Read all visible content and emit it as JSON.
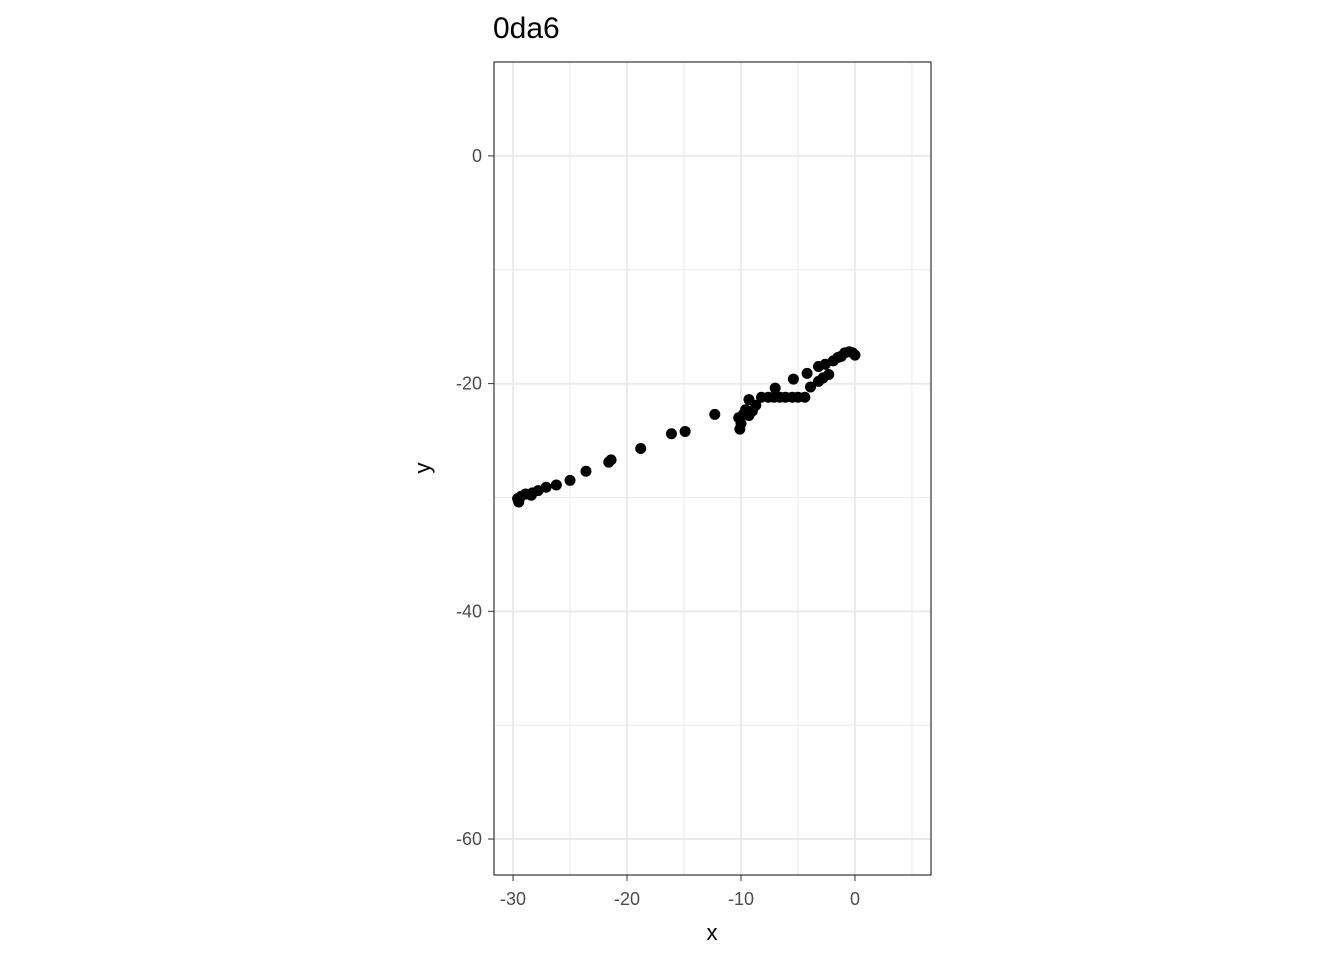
{
  "chart_data": {
    "type": "scatter",
    "title": "0da6",
    "x_label": "x",
    "y_label": "y",
    "color": "#000000",
    "grid": true,
    "x": [
      -29.5,
      -29.6,
      -29.3,
      -28.9,
      -28.4,
      -28.3,
      -27.8,
      -27.1,
      -26.2,
      -25.0,
      -23.6,
      -21.6,
      -21.4,
      -18.8,
      -16.1,
      -14.9,
      -12.3,
      -10.1,
      -10.0,
      -10.2,
      -9.8,
      -9.6,
      -9.3,
      -9.0,
      -9.3,
      -8.7,
      -8.2,
      -7.6,
      -7.1,
      -7.0,
      -6.6,
      -6.1,
      -5.5,
      -5.0,
      -4.4,
      -3.9,
      -4.2,
      -5.4,
      -3.2,
      -2.8,
      -2.3,
      -3.2,
      -2.6,
      -1.9,
      -1.5,
      -1.2,
      -0.9,
      -0.5,
      -0.2,
      0.0
    ],
    "y": [
      -30.4,
      -30.1,
      -29.9,
      -29.7,
      -29.8,
      -29.6,
      -29.4,
      -29.1,
      -28.9,
      -28.5,
      -27.7,
      -26.9,
      -26.7,
      -25.7,
      -24.4,
      -24.2,
      -22.7,
      -24.0,
      -23.5,
      -23.0,
      -22.7,
      -22.3,
      -22.8,
      -22.4,
      -21.4,
      -21.9,
      -21.2,
      -21.2,
      -21.2,
      -20.4,
      -21.2,
      -21.2,
      -21.2,
      -21.2,
      -21.2,
      -20.3,
      -19.1,
      -19.6,
      -19.8,
      -19.5,
      -19.2,
      -18.5,
      -18.3,
      -18.0,
      -17.7,
      -17.6,
      -17.3,
      -17.2,
      -17.3,
      -17.5
    ],
    "xlim": [
      -31.67,
      6.67
    ],
    "xticks": [
      -30,
      -20,
      -10,
      0
    ],
    "ylim": [
      -63.16,
      8.25
    ],
    "yticks": [
      0,
      -20,
      -40,
      -60
    ]
  }
}
